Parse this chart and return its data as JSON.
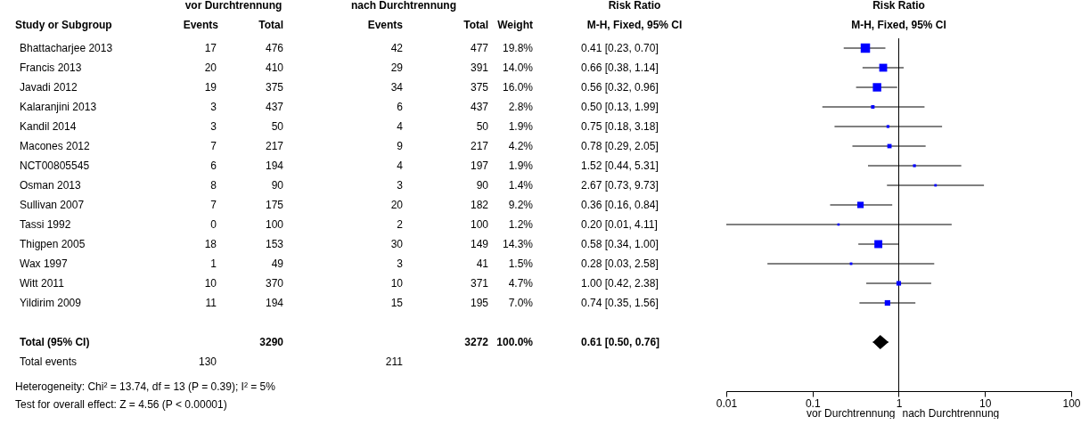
{
  "chart_data": [
    {
      "type": "other",
      "ylabel": "Study or Subgroup",
      "data_labels": true,
      "annotations": [
        "vor Durchtrennung",
        "nach Durchtrennung",
        "Risk Ratio",
        "Heterogeneity: Chi² = 13.74, df = 13 (P = 0.39); I² = 5%",
        "Test for overall effect: Z = 4.56 (P < 0.00001)"
      ],
      "categories": [
        "Bhattacharjee 2013",
        "Francis 2013",
        "Javadi 2012",
        "Kalaranjini 2013",
        "Kandil 2014",
        "Macones 2012",
        "NCT00805545",
        "Osman 2013",
        "Sullivan 2007",
        "Tassi 1992",
        "Thigpen 2005",
        "Wax 1997",
        "Witt 2011",
        "Yildirim 2009",
        null,
        "Total (95% CI)",
        "Total events"
      ],
      "series": [
        {
          "name": "Events",
          "values": [
            17,
            20,
            19,
            3,
            3,
            7,
            6,
            8,
            7,
            0,
            18,
            1,
            10,
            11,
            null,
            null,
            130
          ]
        },
        {
          "name": "Total",
          "values": [
            476,
            410,
            375,
            437,
            50,
            217,
            194,
            90,
            175,
            100,
            153,
            49,
            370,
            194,
            null,
            3290,
            null
          ]
        },
        {
          "name": "Events",
          "values": [
            42,
            29,
            34,
            6,
            4,
            9,
            4,
            3,
            20,
            2,
            30,
            3,
            10,
            15,
            null,
            null,
            211
          ]
        },
        {
          "name": "Total",
          "values": [
            477,
            391,
            375,
            437,
            50,
            217,
            197,
            90,
            182,
            100,
            149,
            41,
            371,
            195,
            null,
            3272,
            null
          ]
        },
        {
          "name": "Weight",
          "values": [
            19.8,
            14.0,
            16.0,
            2.8,
            1.9,
            4.2,
            1.9,
            1.4,
            9.2,
            1.2,
            14.3,
            1.5,
            4.7,
            7.0,
            null,
            100.0,
            null
          ],
          "value_labels": [
            "19.8%",
            "14.0%",
            "16.0%",
            "2.8%",
            "1.9%",
            "4.2%",
            "1.9%",
            "1.4%",
            "9.2%",
            "1.2%",
            "14.3%",
            "1.5%",
            "4.7%",
            "7.0%",
            null,
            "100.0%",
            null
          ]
        },
        {
          "name": "M-H, Fixed, 95% CI",
          "values": [
            0.41,
            0.66,
            0.56,
            0.5,
            0.75,
            0.78,
            1.52,
            2.67,
            0.36,
            0.2,
            0.58,
            0.28,
            1.0,
            0.74,
            null,
            0.61,
            null
          ],
          "value_labels": [
            "0.41 [0.23, 0.70]",
            "0.66 [0.38, 1.14]",
            "0.56 [0.32, 0.96]",
            "0.50 [0.13, 1.99]",
            "0.75 [0.18, 3.18]",
            "0.78 [0.29, 2.05]",
            "1.52 [0.44, 5.31]",
            "2.67 [0.73, 9.73]",
            "0.36 [0.16, 0.84]",
            "0.20 [0.01, 4.11]",
            "0.58 [0.34, 1.00]",
            "0.28 [0.03, 2.58]",
            "1.00 [0.42, 2.38]",
            "0.74 [0.35, 1.56]",
            null,
            "0.61 [0.50, 0.76]",
            null
          ]
        }
      ]
    },
    {
      "type": "scatter",
      "orientation": "horizontal",
      "title": "Risk Ratio",
      "subtitle": "M-H, Fixed, 95% CI",
      "categories": [
        null,
        null,
        null,
        null,
        null,
        null,
        null,
        null,
        null,
        null,
        null,
        null,
        null,
        null,
        null,
        null,
        null,
        null
      ],
      "log": "x",
      "xlim": [
        0.01,
        100
      ],
      "xticks": [
        0.01,
        0.1,
        1,
        10,
        100
      ],
      "tick_labels": "x",
      "ref_lines": [
        {
          "axis": "x",
          "value": 1
        }
      ],
      "annotations": [
        "vor Durchtrennung",
        "nach Durchtrennung"
      ],
      "series": [
        {
          "color": "#0000ff",
          "marker": "square",
          "values": [
            0.41,
            0.66,
            0.56,
            0.5,
            0.75,
            0.78,
            1.52,
            2.67,
            0.36,
            0.2,
            0.58,
            0.28,
            1.0,
            0.74,
            null,
            null,
            null,
            null
          ],
          "errors": [
            [
              0.23,
              0.7
            ],
            [
              0.38,
              1.14
            ],
            [
              0.32,
              0.96
            ],
            [
              0.13,
              1.99
            ],
            [
              0.18,
              3.18
            ],
            [
              0.29,
              2.05
            ],
            [
              0.44,
              5.31
            ],
            [
              0.73,
              9.73
            ],
            [
              0.16,
              0.84
            ],
            [
              0.01,
              4.11
            ],
            [
              0.34,
              1.0
            ],
            [
              0.03,
              2.58
            ],
            [
              0.42,
              2.38
            ],
            [
              0.35,
              1.56
            ],
            null,
            null,
            null,
            null
          ],
          "sizes": [
            1,
            0.71,
            0.81,
            0.14,
            0.096,
            0.21,
            0.096,
            0.071,
            0.46,
            0.061,
            0.72,
            0.076,
            0.24,
            0.35,
            null,
            null,
            null,
            null
          ]
        },
        {
          "color": "#000000",
          "marker": "diamond",
          "values": [
            null,
            null,
            null,
            null,
            null,
            null,
            null,
            null,
            null,
            null,
            null,
            null,
            null,
            null,
            null,
            0.61,
            null,
            null
          ],
          "errors": [
            null,
            null,
            null,
            null,
            null,
            null,
            null,
            null,
            null,
            null,
            null,
            null,
            null,
            null,
            null,
            [
              0.5,
              0.76
            ],
            null,
            null
          ]
        }
      ]
    }
  ]
}
